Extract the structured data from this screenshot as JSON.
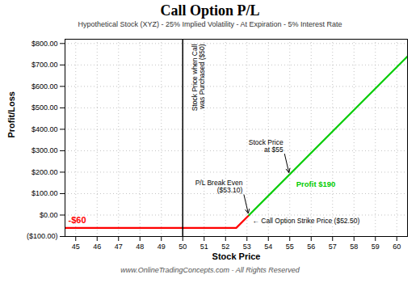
{
  "chart_data": {
    "type": "line",
    "title": "Call Option P/L",
    "subtitle": "Hypothetical Stock (XYZ) - 25% Implied Volatility - At Expiration - 5% Interest Rate",
    "footer": "www.OnlineTradingConcepts.com - All Rights Reserved",
    "xlabel": "Stock Price",
    "ylabel": "Profit/Loss",
    "series": [
      {
        "color": "#ff0000",
        "x": [
          44.5,
          52.5,
          53.1
        ],
        "values": [
          -60,
          -60,
          0
        ]
      },
      {
        "color": "#00cc00",
        "x": [
          53.1,
          60.5
        ],
        "values": [
          0,
          740
        ]
      }
    ],
    "xlim": [
      44.5,
      60.5
    ],
    "ylim": [
      -100,
      820
    ],
    "xticks": [
      45,
      46,
      47,
      48,
      49,
      50,
      51,
      52,
      53,
      54,
      55,
      56,
      57,
      58,
      59,
      60
    ],
    "yticks": [
      {
        "value": -100,
        "label": "($100.00)"
      },
      {
        "value": 0,
        "label": "$0.00"
      },
      {
        "value": 100,
        "label": "$100.00"
      },
      {
        "value": 200,
        "label": "$200.00"
      },
      {
        "value": 300,
        "label": "$300.00"
      },
      {
        "value": 400,
        "label": "$400.00"
      },
      {
        "value": 500,
        "label": "$500.00"
      },
      {
        "value": 600,
        "label": "$600.00"
      },
      {
        "value": 700,
        "label": "$700.00"
      },
      {
        "value": 800,
        "label": "$800.00"
      }
    ],
    "grid": true,
    "vline": {
      "x": 50,
      "color": "#000000",
      "text": "Stock Price when Call\nwas Purchased ($50)"
    },
    "loss_label": {
      "text": "-$60",
      "x": 44.5,
      "y": -60,
      "color": "#ff0000"
    },
    "strike_label": {
      "text": "← Call Option Strike Price ($52.50)",
      "x": 52.5,
      "y": -60
    },
    "profit_label": {
      "text": "Profit $190",
      "x": 55,
      "y": 190,
      "color": "#00cc00"
    },
    "callouts": [
      {
        "text": "P/L Break Even\n($53.10)",
        "x": 53.1,
        "y": 0
      },
      {
        "text": "Stock Price\nat $55",
        "x": 55,
        "y": 190
      }
    ]
  }
}
